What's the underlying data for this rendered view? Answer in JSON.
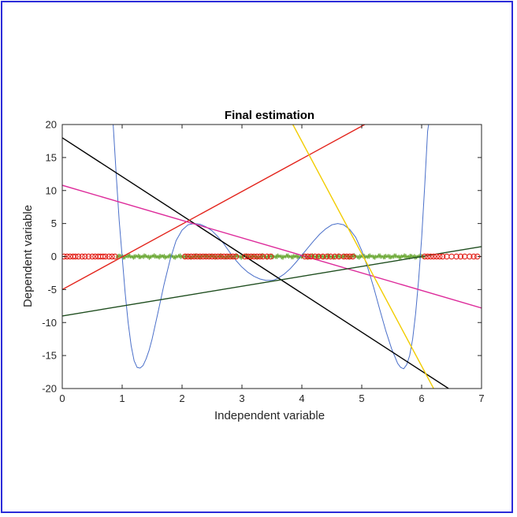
{
  "chart_data": {
    "type": "line",
    "title": "Final estimation",
    "xlabel": "Independent variable",
    "ylabel": "Dependent variable",
    "xlim": [
      0,
      7
    ],
    "ylim": [
      -20,
      20
    ],
    "xticks": [
      "0",
      "1",
      "2",
      "3",
      "4",
      "5",
      "6",
      "7"
    ],
    "yticks": [
      "20",
      "15",
      "10",
      "5",
      "0",
      "-5",
      "-10",
      "-15",
      "-20"
    ],
    "grid": false,
    "legend": "none",
    "series": [
      {
        "kind": "curve",
        "color": "#4a6fc9",
        "x": [
          0.85,
          0.9,
          0.95,
          1.0,
          1.05,
          1.1,
          1.15,
          1.2,
          1.25,
          1.3,
          1.35,
          1.4,
          1.45,
          1.5,
          1.6,
          1.7,
          1.8,
          1.9,
          2.0,
          2.1,
          2.2,
          2.3,
          2.4,
          2.45,
          2.5,
          2.6,
          2.7,
          2.8,
          2.9,
          3.0,
          3.1,
          3.2,
          3.3,
          3.4,
          3.5,
          3.55,
          3.6,
          3.7,
          3.8,
          3.9,
          4.0,
          4.1,
          4.2,
          4.3,
          4.4,
          4.5,
          4.6,
          4.7,
          4.8,
          4.9,
          5.0,
          5.1,
          5.2,
          5.3,
          5.4,
          5.5,
          5.6,
          5.65,
          5.7,
          5.75,
          5.8,
          5.85,
          5.9,
          5.95,
          6.0,
          6.05,
          6.1,
          6.15
        ],
        "y": [
          20,
          12.5,
          5.5,
          0,
          -5.5,
          -10,
          -13.5,
          -15.8,
          -16.8,
          -16.9,
          -16.5,
          -15.5,
          -14.2,
          -12.5,
          -8.4,
          -4.2,
          -0.5,
          2.4,
          4.0,
          4.8,
          5.0,
          4.9,
          4.5,
          4.2,
          3.9,
          3.0,
          1.9,
          0.6,
          -0.6,
          -1.6,
          -2.4,
          -3.0,
          -3.4,
          -3.6,
          -3.6,
          -3.5,
          -3.3,
          -2.7,
          -1.9,
          -0.9,
          0.2,
          1.3,
          2.4,
          3.4,
          4.2,
          4.8,
          5.0,
          4.8,
          4.1,
          2.9,
          0.9,
          -1.7,
          -4.7,
          -8.0,
          -11.2,
          -14.0,
          -16.2,
          -16.8,
          -17.0,
          -16.4,
          -15.0,
          -12.5,
          -8.6,
          -3.5,
          2.8,
          10.5,
          19.0,
          22.0
        ]
      },
      {
        "kind": "line",
        "color": "#000000",
        "x": [
          0,
          6.45
        ],
        "y": [
          18,
          -20
        ]
      },
      {
        "kind": "line",
        "color": "#e3231b",
        "x": [
          0,
          5.05
        ],
        "y": [
          -5,
          20
        ]
      },
      {
        "kind": "line",
        "color": "#dd2a9a",
        "x": [
          0,
          7
        ],
        "y": [
          10.8,
          -7.8
        ]
      },
      {
        "kind": "line",
        "color": "#1e4d1e",
        "x": [
          0,
          7
        ],
        "y": [
          -9,
          1.5
        ]
      },
      {
        "kind": "line",
        "color": "#f2cc00",
        "x": [
          3.85,
          6.2
        ],
        "y": [
          20,
          -20
        ]
      }
    ],
    "noise_band": {
      "color": "#6aa834",
      "x_start": 0.9,
      "x_end": 6.05,
      "y": 0,
      "amplitude": 0.5
    },
    "markers": {
      "color": "#e3231b",
      "y": 0,
      "x": [
        0.03,
        0.08,
        0.13,
        0.18,
        0.22,
        0.27,
        0.33,
        0.38,
        0.44,
        0.5,
        0.55,
        0.6,
        0.64,
        0.68,
        0.72,
        0.78,
        0.83,
        0.88,
        2.05,
        2.1,
        2.15,
        2.2,
        2.25,
        2.3,
        2.35,
        2.4,
        2.45,
        2.5,
        2.55,
        2.6,
        2.65,
        2.7,
        2.75,
        2.8,
        2.85,
        2.9,
        3.05,
        3.1,
        3.15,
        3.2,
        3.25,
        3.3,
        3.35,
        3.42,
        3.48,
        4.05,
        4.1,
        4.15,
        4.22,
        4.28,
        4.35,
        4.42,
        4.48,
        4.55,
        4.62,
        4.7,
        4.75,
        4.8,
        4.85,
        6.05,
        6.1,
        6.15,
        6.2,
        6.25,
        6.3,
        6.35,
        6.42,
        6.5,
        6.58,
        6.65,
        6.72,
        6.8,
        6.87,
        6.93
      ]
    }
  }
}
